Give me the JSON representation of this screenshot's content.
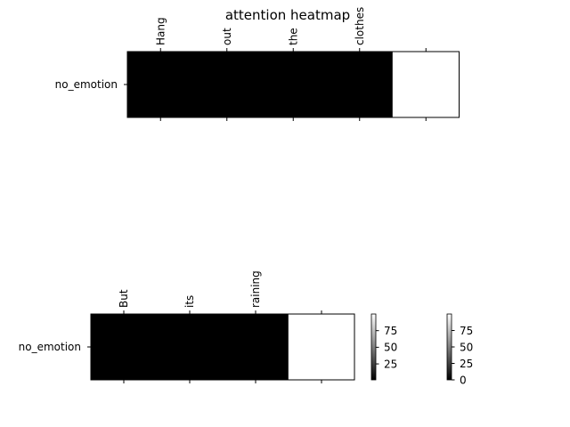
{
  "chart_data": [
    {
      "type": "heatmap",
      "title": "attention heatmap",
      "x_tick_labels": [
        "Hang",
        "out",
        "the",
        "clothes",
        ""
      ],
      "y_tick_labels": [
        "no_emotion"
      ],
      "values": [
        [
          0,
          0,
          0,
          0,
          100
        ]
      ],
      "colormap": "gray",
      "vmin": 0,
      "vmax": 100
    },
    {
      "type": "heatmap",
      "title": "",
      "x_tick_labels": [
        "But",
        "its",
        "raining",
        ""
      ],
      "y_tick_labels": [
        "no_emotion"
      ],
      "values": [
        [
          0,
          0,
          0,
          100
        ]
      ],
      "colormap": "gray",
      "vmin": 0,
      "vmax": 100
    }
  ],
  "colorbars": [
    {
      "ticks": [
        25,
        50,
        75
      ],
      "range": [
        1,
        100
      ]
    },
    {
      "ticks": [
        0,
        25,
        50,
        75
      ],
      "range": [
        0,
        100
      ]
    }
  ]
}
